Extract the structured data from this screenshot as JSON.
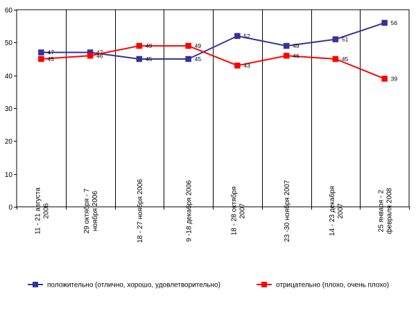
{
  "chart_data": {
    "type": "line",
    "title": "",
    "xlabel": "",
    "ylabel": "",
    "ylim": [
      0,
      60
    ],
    "yticks": [
      0,
      10,
      20,
      30,
      40,
      50,
      60
    ],
    "grid": "vertical separators between categories",
    "legend_position": "bottom",
    "categories": [
      [
        "11 - 21 августа",
        "2006"
      ],
      [
        "29 октября - 7",
        "ноября 2006"
      ],
      [
        "18 - 27 ноября 2006"
      ],
      [
        "9 -18 декабря 2006"
      ],
      [
        "18 - 28 октября",
        "2007"
      ],
      [
        "23 -30 ноября 2007"
      ],
      [
        "14 - 23 декабря",
        "2007"
      ],
      [
        "25 января - 2",
        "февраля 2008"
      ]
    ],
    "series": [
      {
        "name": "положительно (отлично, хорошо, удовлетворительно)",
        "color": "#333399",
        "values": [
          47,
          47,
          45,
          45,
          52,
          49,
          51,
          56
        ]
      },
      {
        "name": "отрицательно (плохо, очень плохо)",
        "color": "#ff0000",
        "values": [
          45,
          46,
          49,
          49,
          43,
          46,
          45,
          39
        ]
      }
    ]
  }
}
